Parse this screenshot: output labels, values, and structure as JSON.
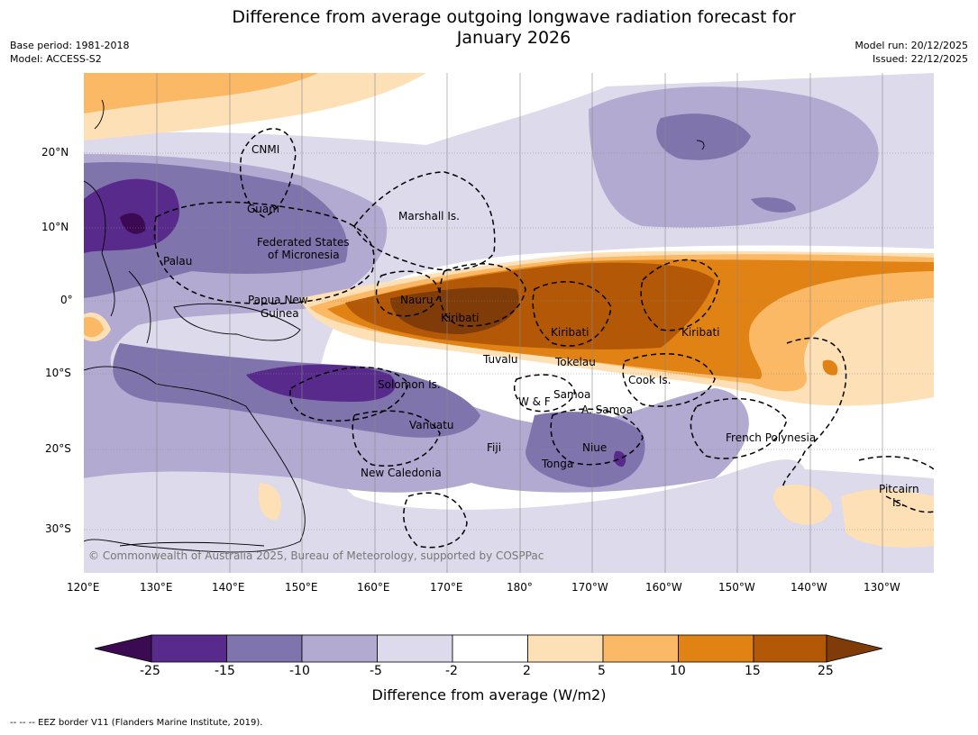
{
  "header": {
    "title_line1": "Difference from average outgoing longwave radiation forecast for",
    "title_line2": "January 2026",
    "base_period": "Base period: 1981-2018",
    "model": "Model: ACCESS-S2",
    "model_run": "Model run: 20/12/2025",
    "issued": "Issued: 22/12/2025"
  },
  "map": {
    "lat_labels": [
      "20°N",
      "10°N",
      "0°",
      "10°S",
      "20°S",
      "30°S"
    ],
    "lon_labels": [
      "120°E",
      "130°E",
      "140°E",
      "150°E",
      "160°E",
      "170°E",
      "180°",
      "170°W",
      "160°W",
      "150°W",
      "140°W",
      "130°W"
    ],
    "places": [
      "CNMI",
      "Guam",
      "Marshall Is.",
      "Federated States",
      "of Micronesia",
      "Palau",
      "Papua New",
      "Guinea",
      "Nauru",
      "Kiribati",
      "Kiribati",
      "Kiribati",
      "Tuvalu",
      "Tokelau",
      "Cook Is.",
      "Solomon Is.",
      "W & F",
      "Samoa",
      "A. Samoa",
      "Vanuatu",
      "Fiji",
      "Niue",
      "Tonga",
      "French Polynesia",
      "New Caledonia",
      "Pitcairn",
      "Is."
    ],
    "copyright": "© Commonwealth of Australia 2025, Bureau of Meteorology, supported by COSPPac"
  },
  "colorbar": {
    "colors": {
      "lt_m25": "#3b0a52",
      "m25_m15": "#582a8c",
      "m15_m10": "#8074ad",
      "m10_m5": "#b2aad1",
      "m5_m2": "#dcdaeb",
      "m2_2": "#ffffff",
      "p2_5": "#fde0b6",
      "p5_10": "#fbb865",
      "p10_15": "#e08214",
      "p15_25": "#b35806",
      "gt_25": "#7f3b08"
    },
    "tick_labels": [
      "-25",
      "-15",
      "-10",
      "-5",
      "-2",
      "2",
      "5",
      "10",
      "15",
      "25"
    ],
    "title": "Difference from average (W/m2)"
  },
  "footnote": "--  --  -- EEZ border V11 (Flanders Marine Institute, 2019)."
}
